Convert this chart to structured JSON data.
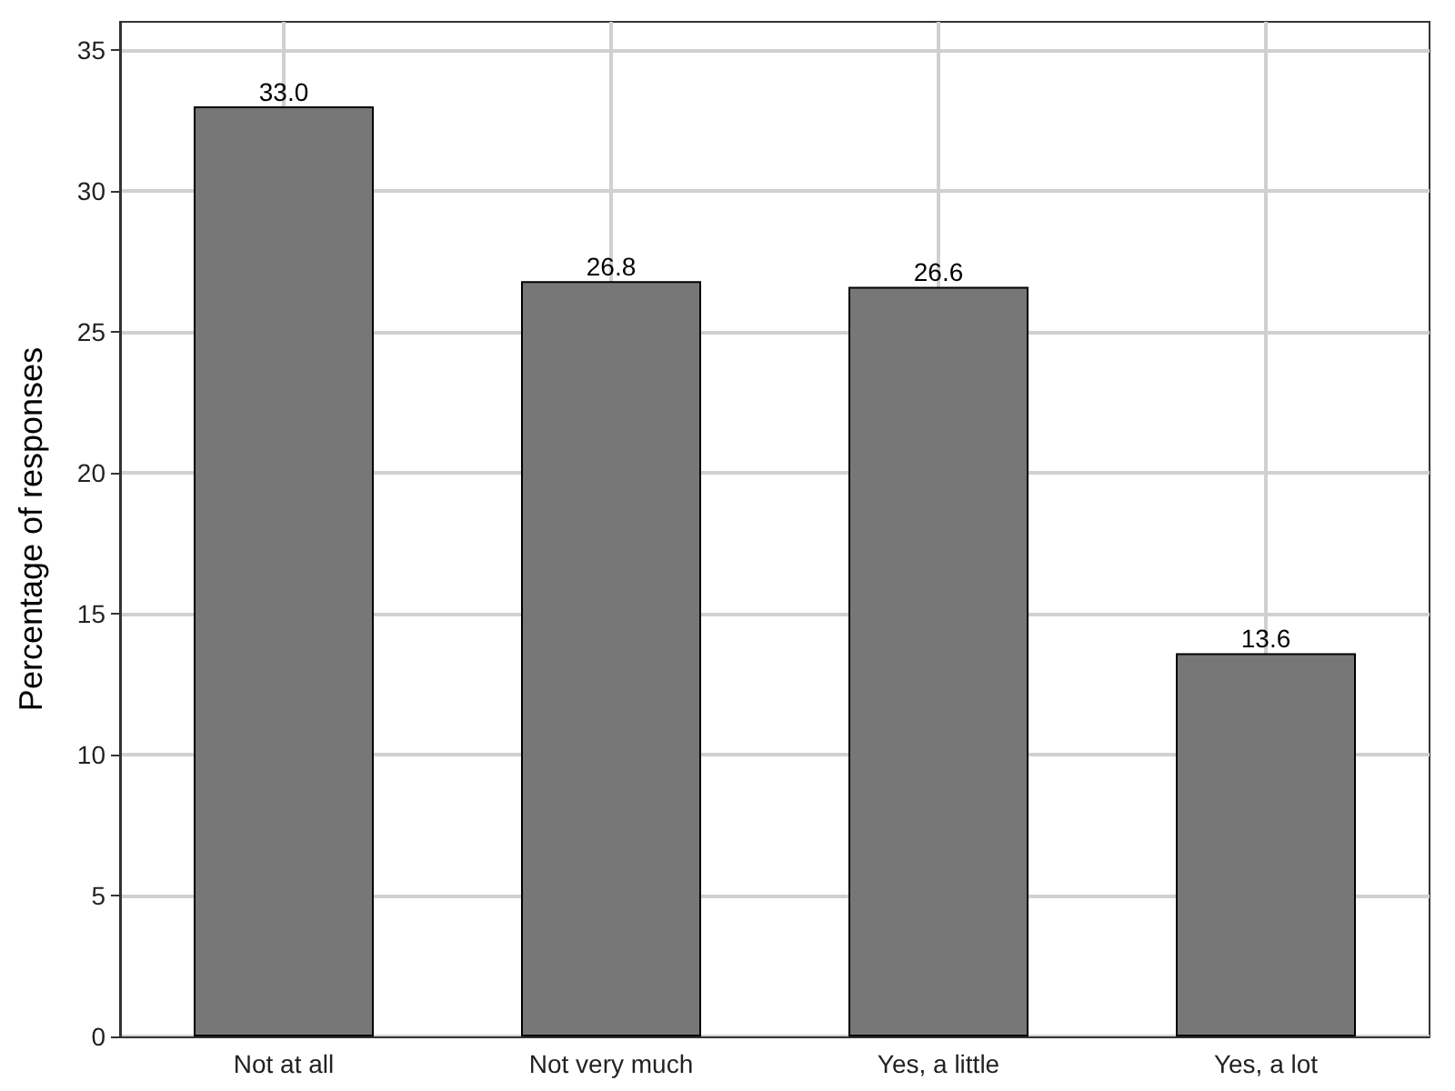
{
  "chart_data": {
    "type": "bar",
    "ylabel": "Percentage of responses",
    "categories": [
      "Not at all",
      "Not very much",
      "Yes, a little",
      "Yes, a lot"
    ],
    "values": [
      33.0,
      26.8,
      26.6,
      13.6
    ],
    "value_labels": [
      "33.0",
      "26.8",
      "26.6",
      "13.6"
    ],
    "color": "#777777",
    "ylim": [
      0,
      36
    ],
    "yticks": [
      0,
      5,
      10,
      15,
      20,
      25,
      30,
      35
    ],
    "grid": true
  }
}
